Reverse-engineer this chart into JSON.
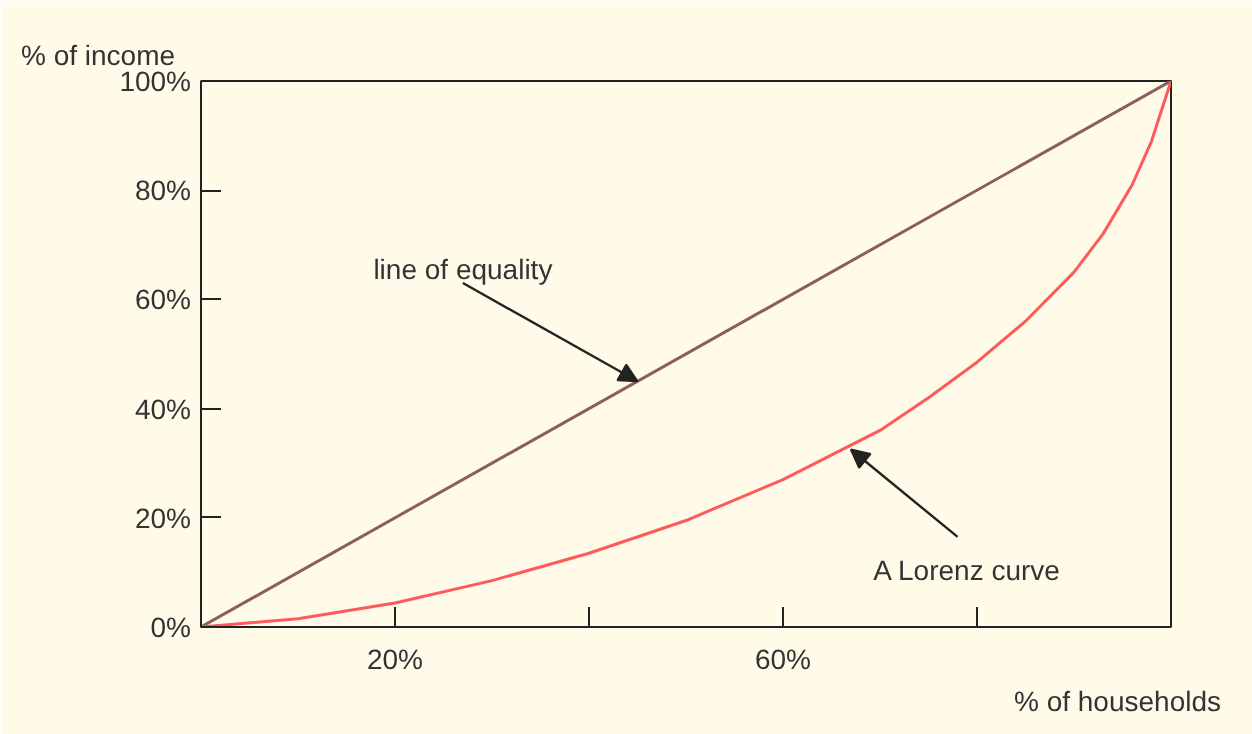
{
  "chart_data": {
    "type": "line",
    "xlabel": "% of households",
    "ylabel": "% of income",
    "xlim": [
      0,
      100
    ],
    "ylim": [
      0,
      100
    ],
    "xticks": [
      {
        "value": 20,
        "label": "20%"
      },
      {
        "value": 40,
        "label": null
      },
      {
        "value": 60,
        "label": "60%"
      },
      {
        "value": 80,
        "label": null
      }
    ],
    "yticks": [
      {
        "value": 0,
        "label": "0%"
      },
      {
        "value": 20,
        "label": "20%"
      },
      {
        "value": 40,
        "label": "40%"
      },
      {
        "value": 60,
        "label": "60%"
      },
      {
        "value": 80,
        "label": "80%"
      },
      {
        "value": 100,
        "label": "100%"
      }
    ],
    "grid": false,
    "marker": "none",
    "line_style": "solid",
    "series": [
      {
        "color": "#8b5e5e",
        "x": [
          0,
          100
        ],
        "values": [
          0,
          100
        ]
      },
      {
        "color": "#ff5a5a",
        "x": [
          0,
          10,
          20,
          30,
          40,
          50,
          60,
          70,
          75,
          80,
          85,
          90,
          93,
          96,
          98,
          100
        ],
        "values": [
          0,
          1.5,
          4.4,
          8.5,
          13.5,
          19.5,
          27,
          36,
          42,
          48.5,
          56,
          65,
          72,
          81,
          89,
          100
        ]
      }
    ],
    "annotations": [
      {
        "text": "line of equality",
        "x": 45,
        "y": 45
      },
      {
        "text": "A Lorenz curve",
        "x": 67,
        "y": 32.5
      }
    ]
  }
}
